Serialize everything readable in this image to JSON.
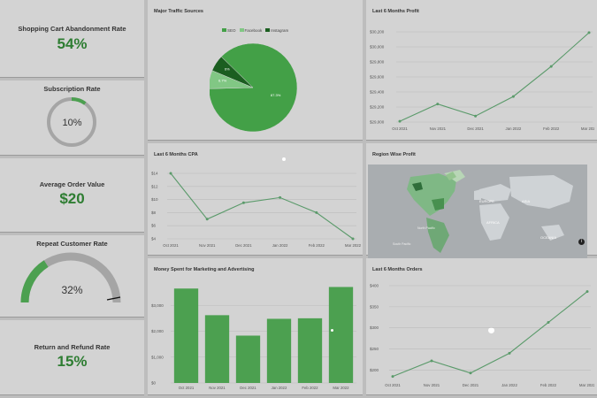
{
  "kpis": {
    "abandonment": {
      "title": "Shopping Cart Abandonment Rate",
      "value": "54%"
    },
    "subscription": {
      "title": "Subscription Rate",
      "value": "10%",
      "level": 0.1
    },
    "aov": {
      "title": "Average Order Value",
      "value": "$20"
    },
    "repeat": {
      "title": "Repeat Customer Rate",
      "value": "32%",
      "level": 0.32
    },
    "refund": {
      "title": "Return and Refund Rate",
      "value": "15%"
    }
  },
  "traffic": {
    "title": "Major Traffic Sources",
    "legend": [
      "SEO",
      "Facebook",
      "Instagram"
    ],
    "slice_labels": [
      "87.3%",
      "6.7%",
      "6%"
    ],
    "colors": [
      "#43a047",
      "#81c784",
      "#1b5e20"
    ]
  },
  "region": {
    "title": "Region Wise Profit",
    "labels": [
      "EUROPE",
      "ASIA",
      "AFRICA",
      "North Pacific",
      "South Pacific",
      "OCEANIA"
    ]
  },
  "chart_data": [
    {
      "type": "line",
      "title": "Last 6 Months Profit",
      "categories": [
        "Oct 2021",
        "Nov 2021",
        "Dec 2021",
        "Jan 2022",
        "Feb 2022",
        "Mar 2022"
      ],
      "values": [
        29010,
        29240,
        29080,
        29340,
        29740,
        30190
      ],
      "ylim": [
        29000,
        30200
      ],
      "yticks": [
        "$29,000",
        "$29,200",
        "$29,400",
        "$29,600",
        "$29,800",
        "$30,000",
        "$30,200"
      ],
      "ytick_values": [
        29000,
        29200,
        29400,
        29600,
        29800,
        30000,
        30200
      ]
    },
    {
      "type": "pie",
      "title": "Major Traffic Sources",
      "categories": [
        "SEO",
        "Facebook",
        "Instagram"
      ],
      "values": [
        87.3,
        6.7,
        6
      ]
    },
    {
      "type": "line",
      "title": "Last 6 Months CPA",
      "categories": [
        "Oct 2021",
        "Nov 2021",
        "Dec 2021",
        "Jan 2022",
        "Feb 2022",
        "Mar 2022"
      ],
      "values": [
        14,
        7,
        9.5,
        10.3,
        8,
        4
      ],
      "ylim": [
        4,
        14
      ],
      "yticks": [
        "$4",
        "$6",
        "$8",
        "$10",
        "$12",
        "$14"
      ],
      "ytick_values": [
        4,
        6,
        8,
        10,
        12,
        14
      ]
    },
    {
      "type": "bar",
      "title": "Money Spent for Marketing and Advertising",
      "categories": [
        "Oct 2021",
        "Nov 2021",
        "Dec 2021",
        "Jan 2022",
        "Feb 2022",
        "Mar 2022"
      ],
      "values": [
        3650,
        2620,
        1830,
        2480,
        2500,
        3710
      ],
      "ylim": [
        0,
        4000
      ],
      "yticks": [
        "$0",
        "$1,000",
        "$2,000",
        "$3,000"
      ],
      "ytick_values": [
        0,
        1000,
        2000,
        3000
      ]
    },
    {
      "type": "line",
      "title": "Last 6 Months Orders",
      "categories": [
        "Oct 2021",
        "Nov 2021",
        "Dec 2021",
        "Jan 2022",
        "Feb 2022",
        "Mar 2022"
      ],
      "values": [
        185,
        222,
        193,
        240,
        313,
        386
      ],
      "ylim": [
        180,
        400
      ],
      "yticks": [
        "$200",
        "$250",
        "$300",
        "$350",
        "$400"
      ],
      "ytick_values": [
        200,
        250,
        300,
        350,
        400
      ]
    }
  ],
  "colors": {
    "accent": "#2e7d32",
    "line": "#5a9a6a",
    "bar": "#4ca050",
    "gauge_track": "#a5a5a5"
  }
}
